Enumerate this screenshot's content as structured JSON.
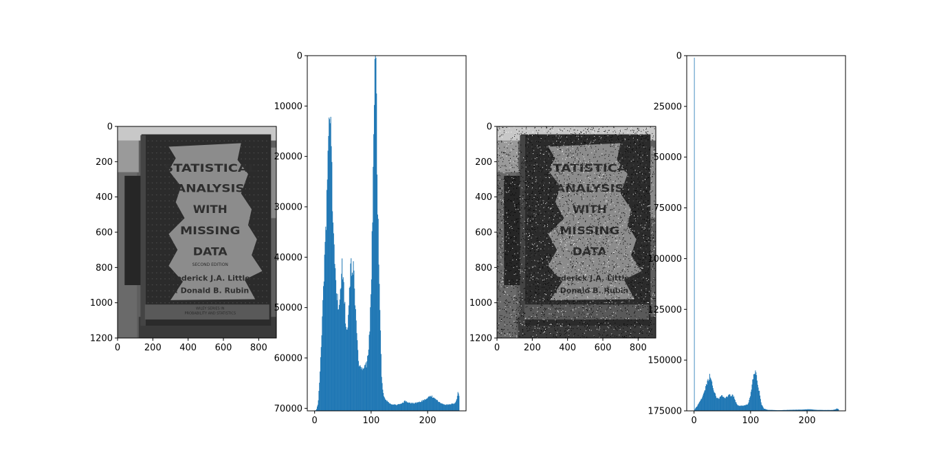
{
  "chart_data": [
    {
      "type": "image",
      "image_content": {
        "cover_lines": [
          "STATISTICAL",
          "ANALYSIS",
          "WITH",
          "MISSING",
          "DATA"
        ],
        "edition": "SECOND EDITION",
        "authors": [
          "Roderick J.A. Little",
          "& Donald B. Rubin"
        ],
        "series": [
          "WILEY SERIES IN",
          "PROBABILITY AND STATISTICS"
        ],
        "colormap": "gray",
        "noise": false
      },
      "xlim": [
        0,
        900
      ],
      "ylim": [
        1200,
        0
      ],
      "xticks": [
        0,
        200,
        400,
        600,
        800
      ],
      "yticks": [
        0,
        200,
        400,
        600,
        800,
        1000,
        1200
      ]
    },
    {
      "type": "histogram",
      "bar_color": "#1f77b4",
      "xlim": [
        -13,
        268
      ],
      "ylim": [
        0,
        70500
      ],
      "xticks": [
        0,
        100,
        200
      ],
      "yticks": [
        0,
        10000,
        20000,
        30000,
        40000,
        50000,
        60000,
        70000
      ],
      "profile": [
        [
          0,
          0
        ],
        [
          3,
          200
        ],
        [
          6,
          1500
        ],
        [
          9,
          6000
        ],
        [
          13,
          17000
        ],
        [
          17,
          29000
        ],
        [
          20,
          37000
        ],
        [
          23,
          46000
        ],
        [
          25,
          56000
        ],
        [
          27,
          62000
        ],
        [
          29,
          58000
        ],
        [
          31,
          44000
        ],
        [
          34,
          32000
        ],
        [
          37,
          26000
        ],
        [
          40,
          23000
        ],
        [
          43,
          20000
        ],
        [
          46,
          24000
        ],
        [
          48,
          30000
        ],
        [
          50,
          26000
        ],
        [
          53,
          22000
        ],
        [
          56,
          15000
        ],
        [
          59,
          17000
        ],
        [
          62,
          24000
        ],
        [
          64,
          29000
        ],
        [
          66,
          27000
        ],
        [
          68,
          29000
        ],
        [
          70,
          26000
        ],
        [
          72,
          21000
        ],
        [
          75,
          14000
        ],
        [
          78,
          9000
        ],
        [
          82,
          8500
        ],
        [
          88,
          8500
        ],
        [
          93,
          9500
        ],
        [
          97,
          15000
        ],
        [
          100,
          25000
        ],
        [
          103,
          42000
        ],
        [
          105,
          56000
        ],
        [
          107,
          70500
        ],
        [
          109,
          65000
        ],
        [
          111,
          44000
        ],
        [
          113,
          33000
        ],
        [
          116,
          19000
        ],
        [
          118,
          8000
        ],
        [
          121,
          3500
        ],
        [
          125,
          2200
        ],
        [
          135,
          1300
        ],
        [
          145,
          1200
        ],
        [
          155,
          1500
        ],
        [
          160,
          2000
        ],
        [
          165,
          1600
        ],
        [
          175,
          1500
        ],
        [
          185,
          1700
        ],
        [
          195,
          2200
        ],
        [
          205,
          3000
        ],
        [
          210,
          2700
        ],
        [
          215,
          2200
        ],
        [
          222,
          1600
        ],
        [
          232,
          1200
        ],
        [
          240,
          1300
        ],
        [
          248,
          1500
        ],
        [
          251,
          2000
        ],
        [
          253,
          3300
        ],
        [
          254,
          4200
        ],
        [
          255,
          3000
        ]
      ]
    },
    {
      "type": "image",
      "image_content": {
        "cover_lines": [
          "STATISTICAL",
          "ANALYSIS",
          "WITH",
          "MISSING",
          "DATA"
        ],
        "authors": [
          "Roderick J.A. Little",
          "& Donald B. Rubin"
        ],
        "colormap": "gray",
        "noise": true
      },
      "xlim": [
        0,
        900
      ],
      "ylim": [
        1200,
        0
      ],
      "xticks": [
        0,
        200,
        400,
        600,
        800
      ],
      "yticks": [
        0,
        200,
        400,
        600,
        800,
        1000,
        1200
      ]
    },
    {
      "type": "histogram",
      "bar_color": "#1f77b4",
      "xlim": [
        -13,
        268
      ],
      "ylim": [
        0,
        175000
      ],
      "xticks": [
        0,
        100,
        200
      ],
      "yticks": [
        0,
        25000,
        50000,
        75000,
        100000,
        125000,
        150000,
        175000
      ],
      "spike": {
        "x": 0,
        "value": 174000
      },
      "profile": [
        [
          0,
          0
        ],
        [
          3,
          1500
        ],
        [
          6,
          2500
        ],
        [
          10,
          4500
        ],
        [
          14,
          6500
        ],
        [
          18,
          9000
        ],
        [
          22,
          13000
        ],
        [
          26,
          16000
        ],
        [
          28,
          17500
        ],
        [
          30,
          16000
        ],
        [
          33,
          11000
        ],
        [
          37,
          8500
        ],
        [
          40,
          6500
        ],
        [
          43,
          6000
        ],
        [
          47,
          7000
        ],
        [
          50,
          7500
        ],
        [
          53,
          6500
        ],
        [
          56,
          6500
        ],
        [
          59,
          7000
        ],
        [
          62,
          8000
        ],
        [
          65,
          7500
        ],
        [
          68,
          8000
        ],
        [
          70,
          7000
        ],
        [
          73,
          5000
        ],
        [
          76,
          3000
        ],
        [
          80,
          2500
        ],
        [
          90,
          2600
        ],
        [
          96,
          3500
        ],
        [
          100,
          8000
        ],
        [
          103,
          14000
        ],
        [
          106,
          18500
        ],
        [
          108,
          19500
        ],
        [
          110,
          17500
        ],
        [
          113,
          12000
        ],
        [
          116,
          9000
        ],
        [
          119,
          3500
        ],
        [
          123,
          1200
        ],
        [
          130,
          500
        ],
        [
          150,
          300
        ],
        [
          170,
          500
        ],
        [
          190,
          600
        ],
        [
          205,
          800
        ],
        [
          215,
          500
        ],
        [
          230,
          400
        ],
        [
          245,
          400
        ],
        [
          250,
          700
        ],
        [
          253,
          1200
        ],
        [
          255,
          800
        ]
      ]
    }
  ]
}
